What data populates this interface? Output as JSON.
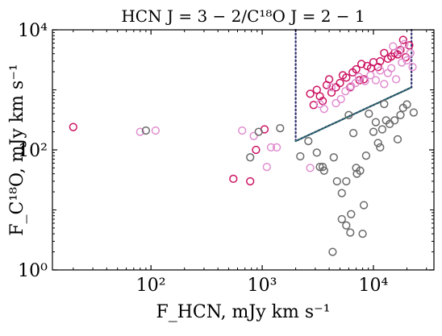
{
  "chart_data": {
    "type": "scatter",
    "title": "HCN J = 3 − 2/C¹⁸O J = 2 − 1",
    "xlabel": "F_HCN, mJy km s⁻¹",
    "ylabel": "F_C¹⁸O, mJy km s⁻¹",
    "xscale": "log",
    "yscale": "log",
    "xlim": [
      13,
      35000
    ],
    "ylim": [
      1,
      10000
    ],
    "x_ticks": [
      {
        "value": 100,
        "label": "10²"
      },
      {
        "value": 1000,
        "label": "10³"
      },
      {
        "value": 10000,
        "label": "10⁴"
      }
    ],
    "y_ticks": [
      {
        "value": 1,
        "label": "10⁰"
      },
      {
        "value": 100,
        "label": "10²"
      },
      {
        "value": 10000,
        "label": "10⁴"
      }
    ],
    "grid": false,
    "colors": {
      "dark_pink": "#cc1462",
      "light_pink": "#e08ecf",
      "gray": "#6a6a6a",
      "line_navy": "#2c2a6b",
      "line_teal": "#2e6f6a"
    },
    "series": [
      {
        "color": "#cc1462",
        "points": [
          [
            20,
            240
          ],
          [
            550,
            33
          ],
          [
            780,
            30
          ],
          [
            880,
            100
          ],
          [
            1050,
            220
          ],
          [
            2700,
            860
          ],
          [
            2900,
            560
          ],
          [
            3100,
            1000
          ],
          [
            3300,
            780
          ],
          [
            3500,
            650
          ],
          [
            3800,
            1200
          ],
          [
            4000,
            1500
          ],
          [
            4200,
            900
          ],
          [
            4600,
            1100
          ],
          [
            5000,
            1300
          ],
          [
            5300,
            1750
          ],
          [
            5700,
            1600
          ],
          [
            6200,
            1100
          ],
          [
            6500,
            1950
          ],
          [
            7000,
            2200
          ],
          [
            7500,
            1450
          ],
          [
            7800,
            2700
          ],
          [
            8200,
            1500
          ],
          [
            8800,
            2500
          ],
          [
            9500,
            2300
          ],
          [
            10000,
            2900
          ],
          [
            11000,
            2400
          ],
          [
            11500,
            3000
          ],
          [
            12500,
            4100
          ],
          [
            13500,
            3300
          ],
          [
            14500,
            3600
          ],
          [
            15500,
            4100
          ],
          [
            16500,
            3900
          ],
          [
            17500,
            4600
          ],
          [
            18500,
            6800
          ],
          [
            19500,
            3500
          ],
          [
            21000,
            5500
          ]
        ]
      },
      {
        "color": "#e08ecf",
        "points": [
          [
            80,
            200
          ],
          [
            110,
            210
          ],
          [
            660,
            210
          ],
          [
            840,
            170
          ],
          [
            1100,
            52
          ],
          [
            1200,
            110
          ],
          [
            1350,
            110
          ],
          [
            2700,
            50
          ],
          [
            3300,
            580
          ],
          [
            3600,
            480
          ],
          [
            4200,
            1100
          ],
          [
            4600,
            600
          ],
          [
            5100,
            700
          ],
          [
            5600,
            950
          ],
          [
            6300,
            1150
          ],
          [
            6900,
            1300
          ],
          [
            7400,
            1650
          ],
          [
            8400,
            1400
          ],
          [
            9400,
            1750
          ],
          [
            10500,
            1450
          ],
          [
            11500,
            2100
          ],
          [
            12500,
            1250
          ],
          [
            13500,
            1900
          ],
          [
            14500,
            2300
          ],
          [
            16000,
            1500
          ],
          [
            18000,
            2850
          ],
          [
            20000,
            3100
          ],
          [
            21500,
            4100
          ],
          [
            22500,
            2400
          ],
          [
            15000,
            5300
          ],
          [
            19000,
            5800
          ],
          [
            17000,
            4300
          ]
        ]
      },
      {
        "color": "#6a6a6a",
        "points": [
          [
            90,
            210
          ],
          [
            780,
            75
          ],
          [
            930,
            200
          ],
          [
            1450,
            230
          ],
          [
            2200,
            78
          ],
          [
            2600,
            140
          ],
          [
            3100,
            90
          ],
          [
            3300,
            52
          ],
          [
            3500,
            52
          ],
          [
            3600,
            45
          ],
          [
            4400,
            75
          ],
          [
            4700,
            30
          ],
          [
            5200,
            19
          ],
          [
            5700,
            30
          ],
          [
            6000,
            380
          ],
          [
            6300,
            8.5
          ],
          [
            6600,
            190
          ],
          [
            7000,
            50
          ],
          [
            7100,
            40
          ],
          [
            7600,
            45
          ],
          [
            8000,
            4
          ],
          [
            8200,
            12
          ],
          [
            8600,
            80
          ],
          [
            9100,
            400
          ],
          [
            10000,
            200
          ],
          [
            11000,
            130
          ],
          [
            12000,
            220
          ],
          [
            13000,
            310
          ],
          [
            14000,
            270
          ],
          [
            15500,
            310
          ],
          [
            16500,
            150
          ],
          [
            17500,
            380
          ],
          [
            18500,
            500
          ],
          [
            20000,
            570
          ],
          [
            23000,
            420
          ],
          [
            12500,
            580
          ],
          [
            11500,
            110
          ],
          [
            10500,
            290
          ]
        ]
      },
      {
        "color": "#6a6a6a",
        "points": [
          [
            4300,
            2
          ],
          [
            6200,
            4.2
          ],
          [
            5700,
            5.5
          ],
          [
            5200,
            7
          ]
        ]
      }
    ],
    "lines": [
      {
        "style": "dotted",
        "color": "#2c2a6b",
        "points": [
          [
            2000,
            10000
          ],
          [
            2000,
            140
          ],
          [
            22000,
            1100
          ],
          [
            22000,
            10000
          ]
        ]
      },
      {
        "style": "dotted",
        "color": "#2e6f6a",
        "points": [
          [
            2000,
            140
          ],
          [
            22000,
            1100
          ]
        ]
      }
    ]
  }
}
